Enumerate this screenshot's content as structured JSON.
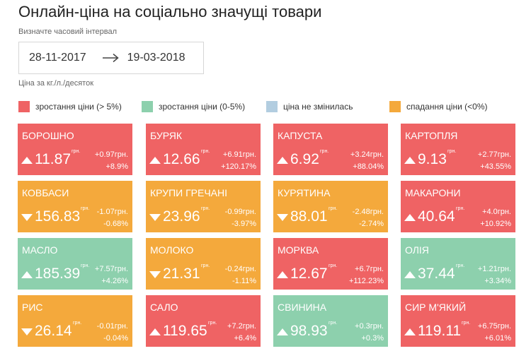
{
  "header": {
    "title": "Онлайн-ціна на соціально значущі товари",
    "interval_label": "Визначте часовий інтервал",
    "date_from": "28-11-2017",
    "date_to": "19-03-2018",
    "unit_label": "Ціна за кг./л./десяток"
  },
  "legend": [
    {
      "label": "зростання ціни (> 5%)",
      "color": "#ef6364"
    },
    {
      "label": "зростання ціни (0-5%)",
      "color": "#8dd0ad"
    },
    {
      "label": "ціна не змінилась",
      "color": "#b2cde0"
    },
    {
      "label": "спадання ціни (<0%)",
      "color": "#f4a93c"
    }
  ],
  "currency": "грн.",
  "products": [
    {
      "name": "БОРОШНО",
      "price": "11.87",
      "change_abs": "+0.97грн.",
      "change_pct": "+8.9%",
      "status": "red",
      "direction": "up"
    },
    {
      "name": "БУРЯК",
      "price": "12.66",
      "change_abs": "+6.91грн.",
      "change_pct": "+120.17%",
      "status": "red",
      "direction": "up"
    },
    {
      "name": "КАПУСТА",
      "price": "6.92",
      "change_abs": "+3.24грн.",
      "change_pct": "+88.04%",
      "status": "red",
      "direction": "up"
    },
    {
      "name": "КАРТОПЛЯ",
      "price": "9.13",
      "change_abs": "+2.77грн.",
      "change_pct": "+43.55%",
      "status": "red",
      "direction": "up"
    },
    {
      "name": "КОВБАСИ",
      "price": "156.83",
      "change_abs": "-1.07грн.",
      "change_pct": "-0.68%",
      "status": "orange",
      "direction": "down"
    },
    {
      "name": "КРУПИ ГРЕЧАНІ",
      "price": "23.96",
      "change_abs": "-0.99грн.",
      "change_pct": "-3.97%",
      "status": "orange",
      "direction": "down"
    },
    {
      "name": "КУРЯТИНА",
      "price": "88.01",
      "change_abs": "-2.48грн.",
      "change_pct": "-2.74%",
      "status": "orange",
      "direction": "down"
    },
    {
      "name": "МАКАРОНИ",
      "price": "40.64",
      "change_abs": "+4.0грн.",
      "change_pct": "+10.92%",
      "status": "red",
      "direction": "up"
    },
    {
      "name": "МАСЛО",
      "price": "185.39",
      "change_abs": "+7.57грн.",
      "change_pct": "+4.26%",
      "status": "green",
      "direction": "up"
    },
    {
      "name": "МОЛОКО",
      "price": "21.31",
      "change_abs": "-0.24грн.",
      "change_pct": "-1.11%",
      "status": "orange",
      "direction": "down"
    },
    {
      "name": "МОРКВА",
      "price": "12.67",
      "change_abs": "+6.7грн.",
      "change_pct": "+112.23%",
      "status": "red",
      "direction": "up"
    },
    {
      "name": "ОЛІЯ",
      "price": "37.44",
      "change_abs": "+1.21грн.",
      "change_pct": "+3.34%",
      "status": "green",
      "direction": "up"
    },
    {
      "name": "РИС",
      "price": "26.14",
      "change_abs": "-0.01грн.",
      "change_pct": "-0.04%",
      "status": "orange",
      "direction": "down"
    },
    {
      "name": "САЛО",
      "price": "119.65",
      "change_abs": "+7.2грн.",
      "change_pct": "+6.4%",
      "status": "red",
      "direction": "up"
    },
    {
      "name": "СВИНИНА",
      "price": "98.93",
      "change_abs": "+0.3грн.",
      "change_pct": "+0.3%",
      "status": "green",
      "direction": "up"
    },
    {
      "name": "СИР М'ЯКИЙ",
      "price": "119.11",
      "change_abs": "+6.75грн.",
      "change_pct": "+6.01%",
      "status": "red",
      "direction": "up"
    }
  ]
}
